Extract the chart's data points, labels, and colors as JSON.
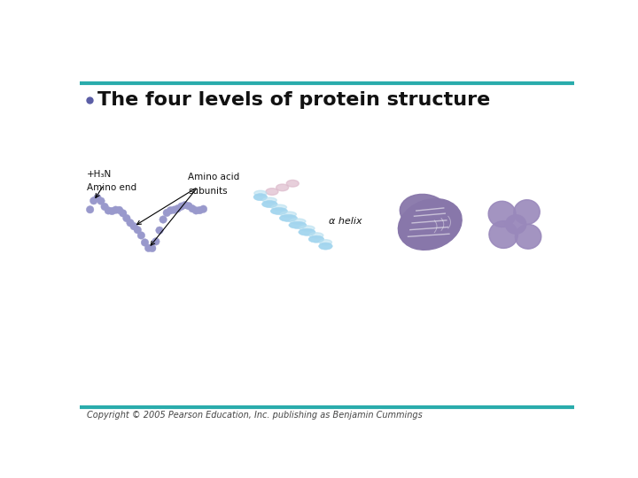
{
  "title": "The four levels of protein structure",
  "bullet_color": "#5b5ea6",
  "title_fontsize": 16,
  "teal_color": "#2aacac",
  "background_color": "#ffffff",
  "copyright_text": "Copyright © 2005 Pearson Education, Inc. publishing as Benjamin Cummings",
  "copyright_fontsize": 7,
  "label_amino_end_1": "+H₃N",
  "label_amino_end_2": "Amino end",
  "label_subunits_1": "Amino acid",
  "label_subunits_2": "subunits",
  "label_helix": "α helix",
  "bead_color": "#9999cc",
  "helix_color_light": "#b8e0f0",
  "helix_color_dark": "#7ec8e3",
  "helix_color_mid": "#a0d4ee",
  "structure3_color": "#8877aa",
  "structure3_color2": "#7766aa",
  "structure4_color": "#9988bb",
  "structure4_color2": "#8877bb"
}
